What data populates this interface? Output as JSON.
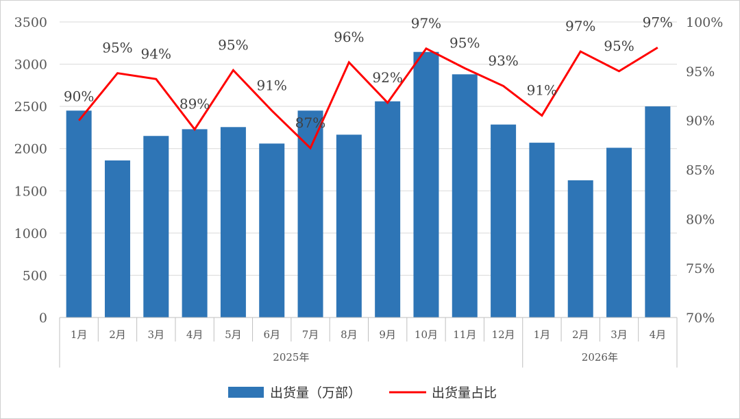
{
  "chart_data": {
    "type": "bar",
    "categories": [
      "1月",
      "2月",
      "3月",
      "4月",
      "5月",
      "6月",
      "7月",
      "8月",
      "9月",
      "10月",
      "11月",
      "12月",
      "1月",
      "2月",
      "3月",
      "4月"
    ],
    "groups": [
      {
        "label": "2025年",
        "start": 0,
        "end": 11
      },
      {
        "label": "2026年",
        "start": 12,
        "end": 15
      }
    ],
    "series": [
      {
        "name": "出货量（万部）",
        "type": "bar",
        "axis": "left",
        "color": "#2e75b6",
        "values": [
          2450,
          1860,
          2150,
          2230,
          2255,
          2060,
          2450,
          2165,
          2560,
          3145,
          2880,
          2285,
          2070,
          1625,
          2010,
          2500
        ]
      },
      {
        "name": "出货量占比",
        "type": "line",
        "axis": "right",
        "color": "#ff0000",
        "values": [
          90,
          94.8,
          94.2,
          89.1,
          95.1,
          91,
          87.2,
          95.9,
          91.8,
          97.3,
          95.3,
          93.5,
          90.5,
          97,
          95,
          97.4
        ],
        "labels": [
          "90%",
          "95%",
          "94%",
          "89%",
          "95%",
          "91%",
          "87%",
          "96%",
          "92%",
          "97%",
          "95%",
          "93%",
          "91%",
          "97%",
          "95%",
          "97%"
        ]
      }
    ],
    "y_left": {
      "min": 0,
      "max": 3500,
      "step": 500,
      "ticks": [
        "0",
        "500",
        "1000",
        "1500",
        "2000",
        "2500",
        "3000",
        "3500"
      ]
    },
    "y_right": {
      "min": 70,
      "max": 100,
      "step": 5,
      "ticks": [
        "70%",
        "75%",
        "80%",
        "85%",
        "90%",
        "95%",
        "100%"
      ]
    },
    "grid": true,
    "legend_position": "bottom"
  }
}
